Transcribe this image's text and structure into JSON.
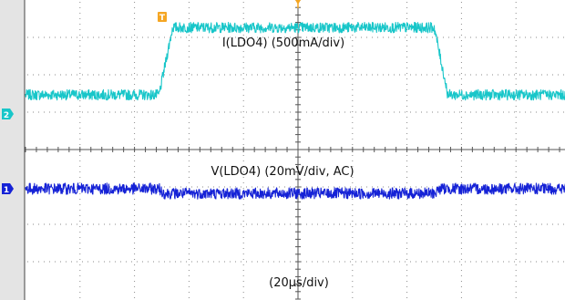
{
  "chart_data": {
    "type": "line",
    "title": "",
    "xlabel": "(20µs/div)",
    "ylabel": "",
    "x_unit": "µs",
    "x_per_div": 20,
    "x_divisions": 10,
    "y_divisions": 8,
    "grid": true,
    "legend": "none",
    "trigger_marker": "T",
    "series": [
      {
        "name": "I(LDO4) (500mA/div)",
        "channel": "2",
        "color": "#18c6c9",
        "unit": "mA",
        "scale_per_div": 500,
        "low_level": 0,
        "high_level": 900,
        "noise": 70,
        "x": [
          0,
          49,
          54,
          150,
          155,
          200
        ],
        "values": [
          0,
          0,
          900,
          900,
          0,
          0
        ]
      },
      {
        "name": "V(LDO4) (20mV/div, AC)",
        "channel": "1",
        "color": "#1522d6",
        "unit": "mV",
        "scale_per_div": 20,
        "noise": 3,
        "x": [
          0,
          49,
          51,
          150,
          152,
          200
        ],
        "values": [
          0,
          0,
          -2.5,
          -2.5,
          0,
          0
        ]
      }
    ]
  }
}
